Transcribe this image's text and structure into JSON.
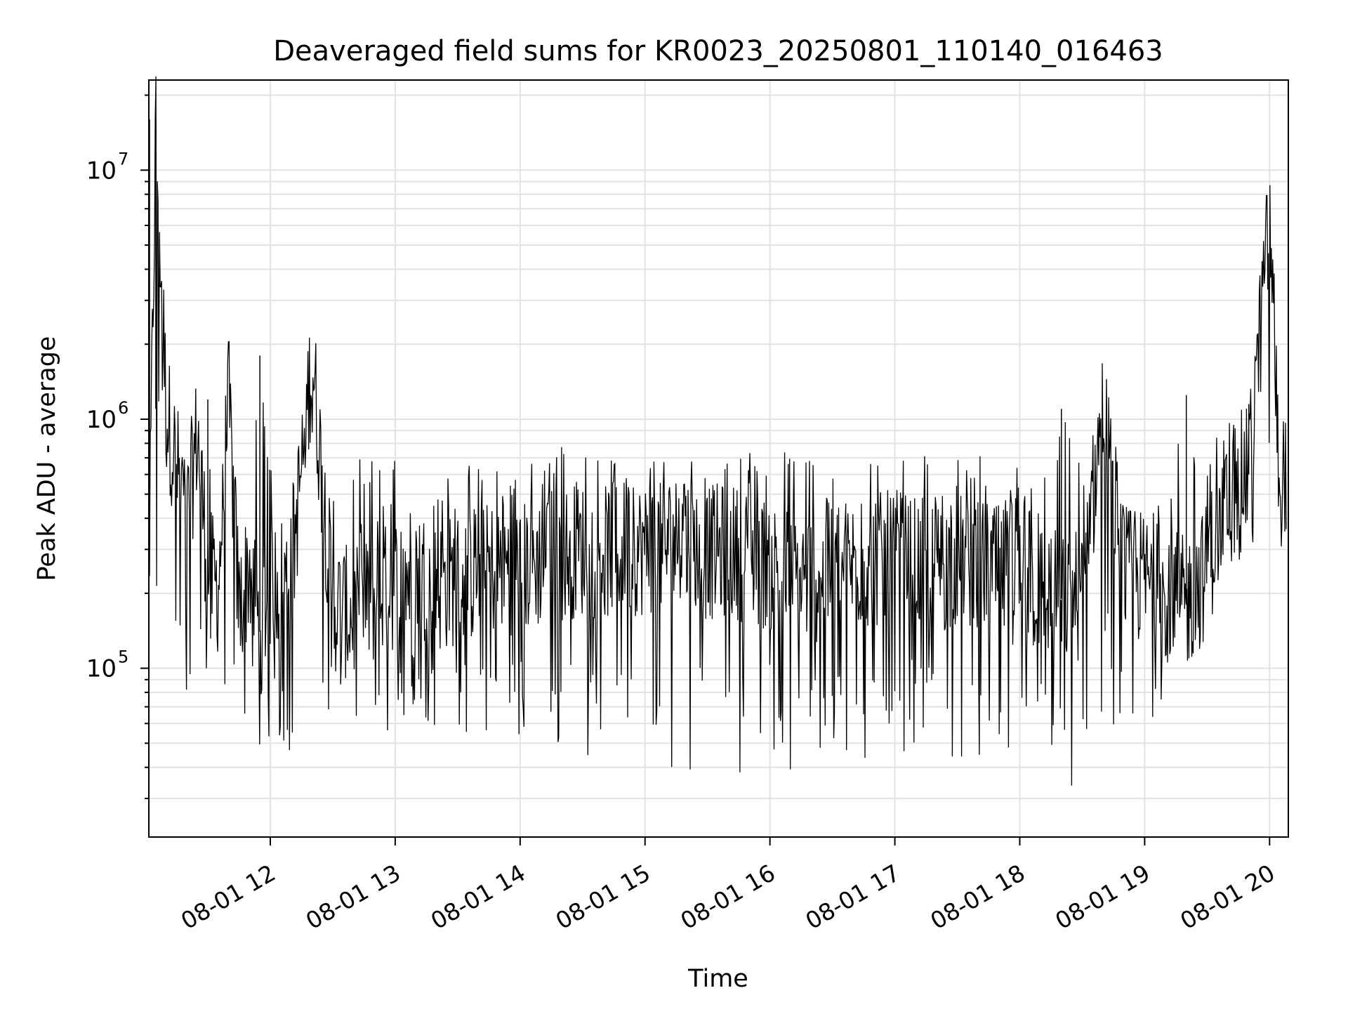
{
  "chart_data": {
    "type": "line",
    "title": "Deaveraged field sums for KR0023_20250801_110140_016463",
    "xlabel": "Time",
    "ylabel": "Peak ADU - average",
    "xscale": "time",
    "yscale": "log",
    "xlim": [
      "2025-08-01 11:01:40",
      "2025-08-01 20:09:00"
    ],
    "ylim": [
      21000,
      23000000
    ],
    "grid": true,
    "x_ticks": [
      "2025-08-01 12:00",
      "2025-08-01 13:00",
      "2025-08-01 14:00",
      "2025-08-01 15:00",
      "2025-08-01 16:00",
      "2025-08-01 17:00",
      "2025-08-01 18:00",
      "2025-08-01 19:00",
      "2025-08-01 20:00"
    ],
    "x_tick_labels": [
      "08-01 12",
      "08-01 13",
      "08-01 14",
      "08-01 15",
      "08-01 16",
      "08-01 17",
      "08-01 18",
      "08-01 19",
      "08-01 20"
    ],
    "y_ticks": [
      100000,
      1000000,
      10000000
    ],
    "y_tick_base": "10",
    "y_tick_exponents": [
      "5",
      "6",
      "7"
    ],
    "series": [
      {
        "color": "#000000",
        "x": [
          "2025-08-01 11:02",
          "2025-08-01 11:05",
          "2025-08-01 11:10",
          "2025-08-01 11:15",
          "2025-08-01 11:20",
          "2025-08-01 11:25",
          "2025-08-01 11:30",
          "2025-08-01 11:35",
          "2025-08-01 11:40",
          "2025-08-01 11:45",
          "2025-08-01 11:50",
          "2025-08-01 11:55",
          "2025-08-01 12:00",
          "2025-08-01 12:10",
          "2025-08-01 12:20",
          "2025-08-01 12:30",
          "2025-08-01 12:40",
          "2025-08-01 12:50",
          "2025-08-01 13:00",
          "2025-08-01 13:10",
          "2025-08-01 13:20",
          "2025-08-01 13:30",
          "2025-08-01 13:40",
          "2025-08-01 13:50",
          "2025-08-01 14:00",
          "2025-08-01 14:10",
          "2025-08-01 14:20",
          "2025-08-01 14:30",
          "2025-08-01 14:40",
          "2025-08-01 14:50",
          "2025-08-01 15:00",
          "2025-08-01 15:10",
          "2025-08-01 15:20",
          "2025-08-01 15:30",
          "2025-08-01 15:40",
          "2025-08-01 15:50",
          "2025-08-01 16:00",
          "2025-08-01 16:10",
          "2025-08-01 16:20",
          "2025-08-01 16:30",
          "2025-08-01 16:40",
          "2025-08-01 16:50",
          "2025-08-01 17:00",
          "2025-08-01 17:10",
          "2025-08-01 17:20",
          "2025-08-01 17:30",
          "2025-08-01 17:40",
          "2025-08-01 17:50",
          "2025-08-01 18:00",
          "2025-08-01 18:10",
          "2025-08-01 18:20",
          "2025-08-01 18:30",
          "2025-08-01 18:40",
          "2025-08-01 18:50",
          "2025-08-01 19:00",
          "2025-08-01 19:10",
          "2025-08-01 19:20",
          "2025-08-01 19:30",
          "2025-08-01 19:40",
          "2025-08-01 19:50",
          "2025-08-01 20:00",
          "2025-08-01 20:05",
          "2025-08-01 20:08"
        ],
        "y": [
          300000,
          16000000,
          1100000,
          650000,
          380000,
          900000,
          240000,
          210000,
          1200000,
          170000,
          260000,
          140000,
          220000,
          230000,
          1800000,
          180000,
          160000,
          190000,
          220000,
          250000,
          210000,
          230000,
          240000,
          260000,
          250000,
          270000,
          290000,
          300000,
          290000,
          310000,
          300000,
          320000,
          330000,
          290000,
          300000,
          280000,
          260000,
          240000,
          230000,
          250000,
          260000,
          270000,
          280000,
          260000,
          250000,
          270000,
          260000,
          240000,
          230000,
          210000,
          190000,
          200000,
          1100000,
          240000,
          230000,
          200000,
          180000,
          250000,
          550000,
          600000,
          6400000,
          560000,
          650000
        ],
        "y_min": [
          38000,
          60000,
          70000,
          90000,
          65000,
          80000,
          95000,
          60000,
          48000,
          55000,
          50000,
          45000,
          48000,
          45000,
          50000,
          65000,
          55000,
          50000,
          52000,
          60000,
          58000,
          55000,
          52000,
          60000,
          50000,
          62000,
          45000,
          40000,
          50000,
          55000,
          48000,
          40000,
          38000,
          45000,
          36000,
          40000,
          42000,
          36000,
          42000,
          45000,
          40000,
          38000,
          45000,
          48000,
          50000,
          42000,
          40000,
          33000,
          32000,
          45000,
          29000,
          31000,
          45000,
          42000,
          50000,
          80000,
          180000,
          210000,
          250000,
          290000,
          330000,
          420000,
          470000
        ],
        "y_max": [
          16000000,
          1100000,
          900000,
          750000,
          700000,
          600000,
          1200000,
          650000,
          700000,
          650000,
          880000,
          1800000,
          950000,
          600000,
          650000,
          780000,
          700000,
          720000,
          750000,
          700000,
          680000,
          620000,
          700000,
          660000,
          720000,
          650000,
          860000,
          800000,
          700000,
          780000,
          800000,
          720000,
          700000,
          750000,
          680000,
          800000,
          780000,
          750000,
          760000,
          700000,
          700000,
          720000,
          750000,
          780000,
          680000,
          700000,
          720000,
          650000,
          700000,
          660000,
          1100000,
          650000,
          700000,
          680000,
          650000,
          700000,
          1250000,
          900000,
          850000,
          1150000,
          6400000,
          880000,
          700000
        ]
      }
    ]
  }
}
